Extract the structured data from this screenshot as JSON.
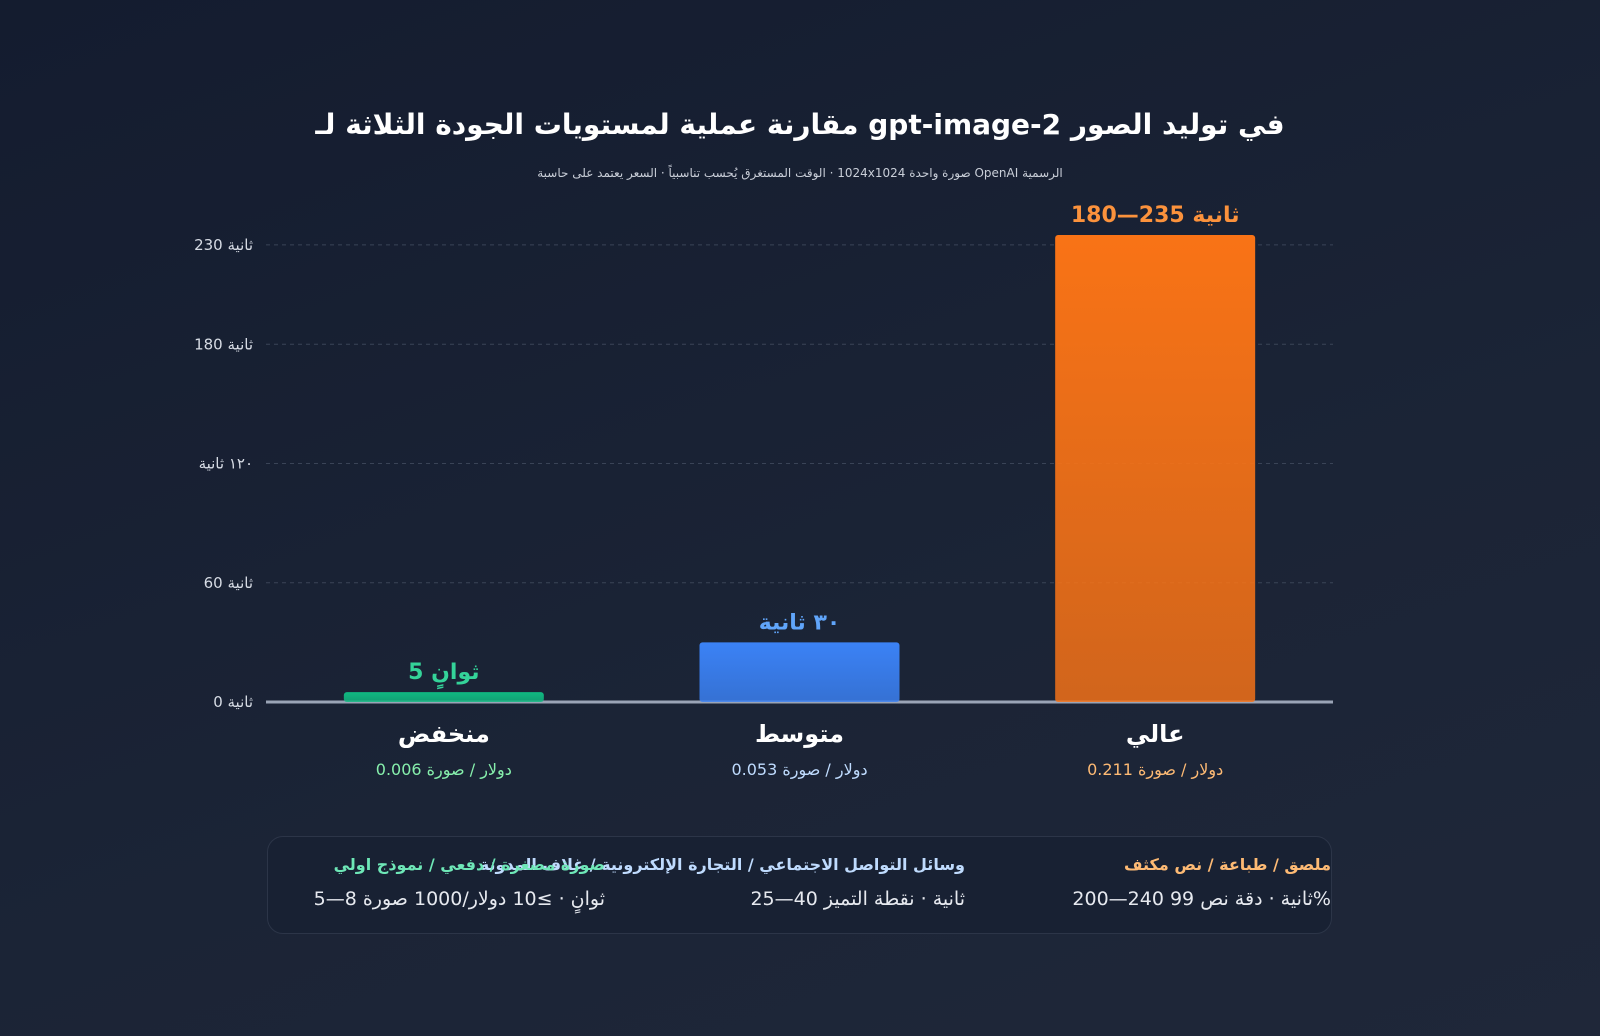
{
  "title": "في توليد الصور gpt-image-2 مقارنة عملية لمستويات الجودة الثلاثة لـ",
  "subtitle": "الرسمية OpenAI صورة واحدة 1024x1024 · الوقت المستغرق يُحسب تناسبياً · السعر يعتمد على حاسبة",
  "chart_data": {
    "type": "bar",
    "categories": [
      "منخفض",
      "متوسط",
      "عالي"
    ],
    "values": [
      5,
      30,
      235
    ],
    "value_labels": [
      "ثوانٍ 5",
      "٣٠ ثانية",
      "ثانية 235—180"
    ],
    "prices": [
      "دولار / صورة 0.006",
      "دولار / صورة 0.053",
      "دولار / صورة 0.211"
    ],
    "bar_colors": [
      "#10b981",
      "#3b82f6",
      "#f97316"
    ],
    "label_colors": [
      "#34d399",
      "#60a5fa",
      "#fb923c"
    ],
    "price_colors": [
      "#86efac",
      "#bfdbfe",
      "#fdba74"
    ],
    "y_ticks": [
      0,
      60,
      120,
      180,
      230
    ],
    "y_tick_labels": [
      "ثانية 0",
      "ثانية 60",
      "١٢٠ ثانية",
      "ثانية 180",
      "ثانية 230"
    ],
    "ylim": [
      0,
      235
    ],
    "grid": true
  },
  "info": {
    "high": {
      "heading": "ملصق / طباعة / نص مكثف",
      "detail": "%ثانية · دقة نص 99 240—200",
      "color": "#fdba74"
    },
    "medium": {
      "heading": "وسائل التواصل الاجتماعي / التجارة الإلكترونية / غلاف المدونة",
      "detail": "ثانية · نقطة التميز 40—25",
      "color": "#bfdbfe"
    },
    "low": {
      "heading": "صورة مصغرة / دفعي / نموذج اولي",
      "detail": "ثوانٍ · ≥10 دولار/1000 صورة 8—5",
      "color": "#6ee7b7"
    }
  }
}
